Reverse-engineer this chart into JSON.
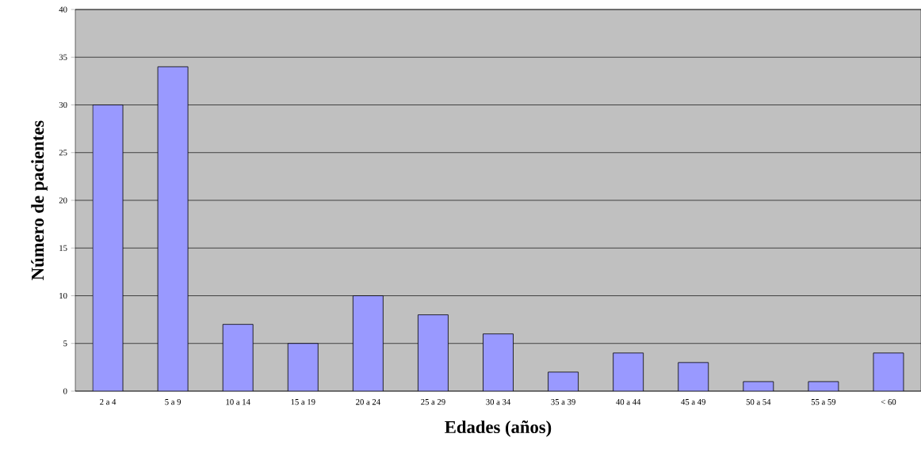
{
  "chart_data": {
    "type": "bar",
    "xlabel": "Edades (años)",
    "ylabel": "Número de pacientes",
    "categories": [
      "2 a 4",
      "5 a 9",
      "10 a 14",
      "15 a 19",
      "20 a 24",
      "25 a 29",
      "30 a 34",
      "35 a 39",
      "40 a 44",
      "45 a 49",
      "50 a 54",
      "55 a 59",
      "< 60"
    ],
    "values": [
      30,
      34,
      7,
      5,
      10,
      8,
      6,
      2,
      4,
      3,
      1,
      1,
      4
    ],
    "color": "#9999ff",
    "ylim": [
      0,
      40
    ],
    "yticks": [
      0,
      5,
      10,
      15,
      20,
      25,
      30,
      35,
      40
    ],
    "grid": "y"
  }
}
